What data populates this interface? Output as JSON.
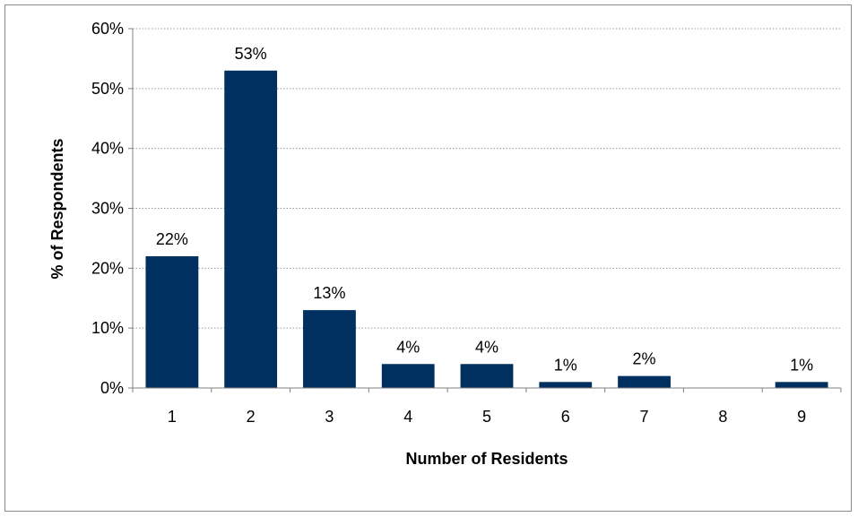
{
  "chart_data": {
    "type": "bar",
    "title": "",
    "xlabel": "Number of Residents",
    "ylabel": "% of Respondents",
    "categories": [
      "1",
      "2",
      "3",
      "4",
      "5",
      "6",
      "7",
      "8",
      "9"
    ],
    "values": [
      22,
      53,
      13,
      4,
      4,
      1,
      2,
      0,
      1
    ],
    "data_labels": [
      "22%",
      "53%",
      "13%",
      "4%",
      "4%",
      "1%",
      "2%",
      "",
      "1%"
    ],
    "y_ticks": [
      0,
      10,
      20,
      30,
      40,
      50,
      60
    ],
    "y_tick_labels": [
      "0%",
      "10%",
      "20%",
      "30%",
      "40%",
      "50%",
      "60%"
    ],
    "ylim": [
      0,
      60
    ],
    "grid": "horizontal dotted",
    "legend": "none",
    "bar_color": "#003060"
  }
}
